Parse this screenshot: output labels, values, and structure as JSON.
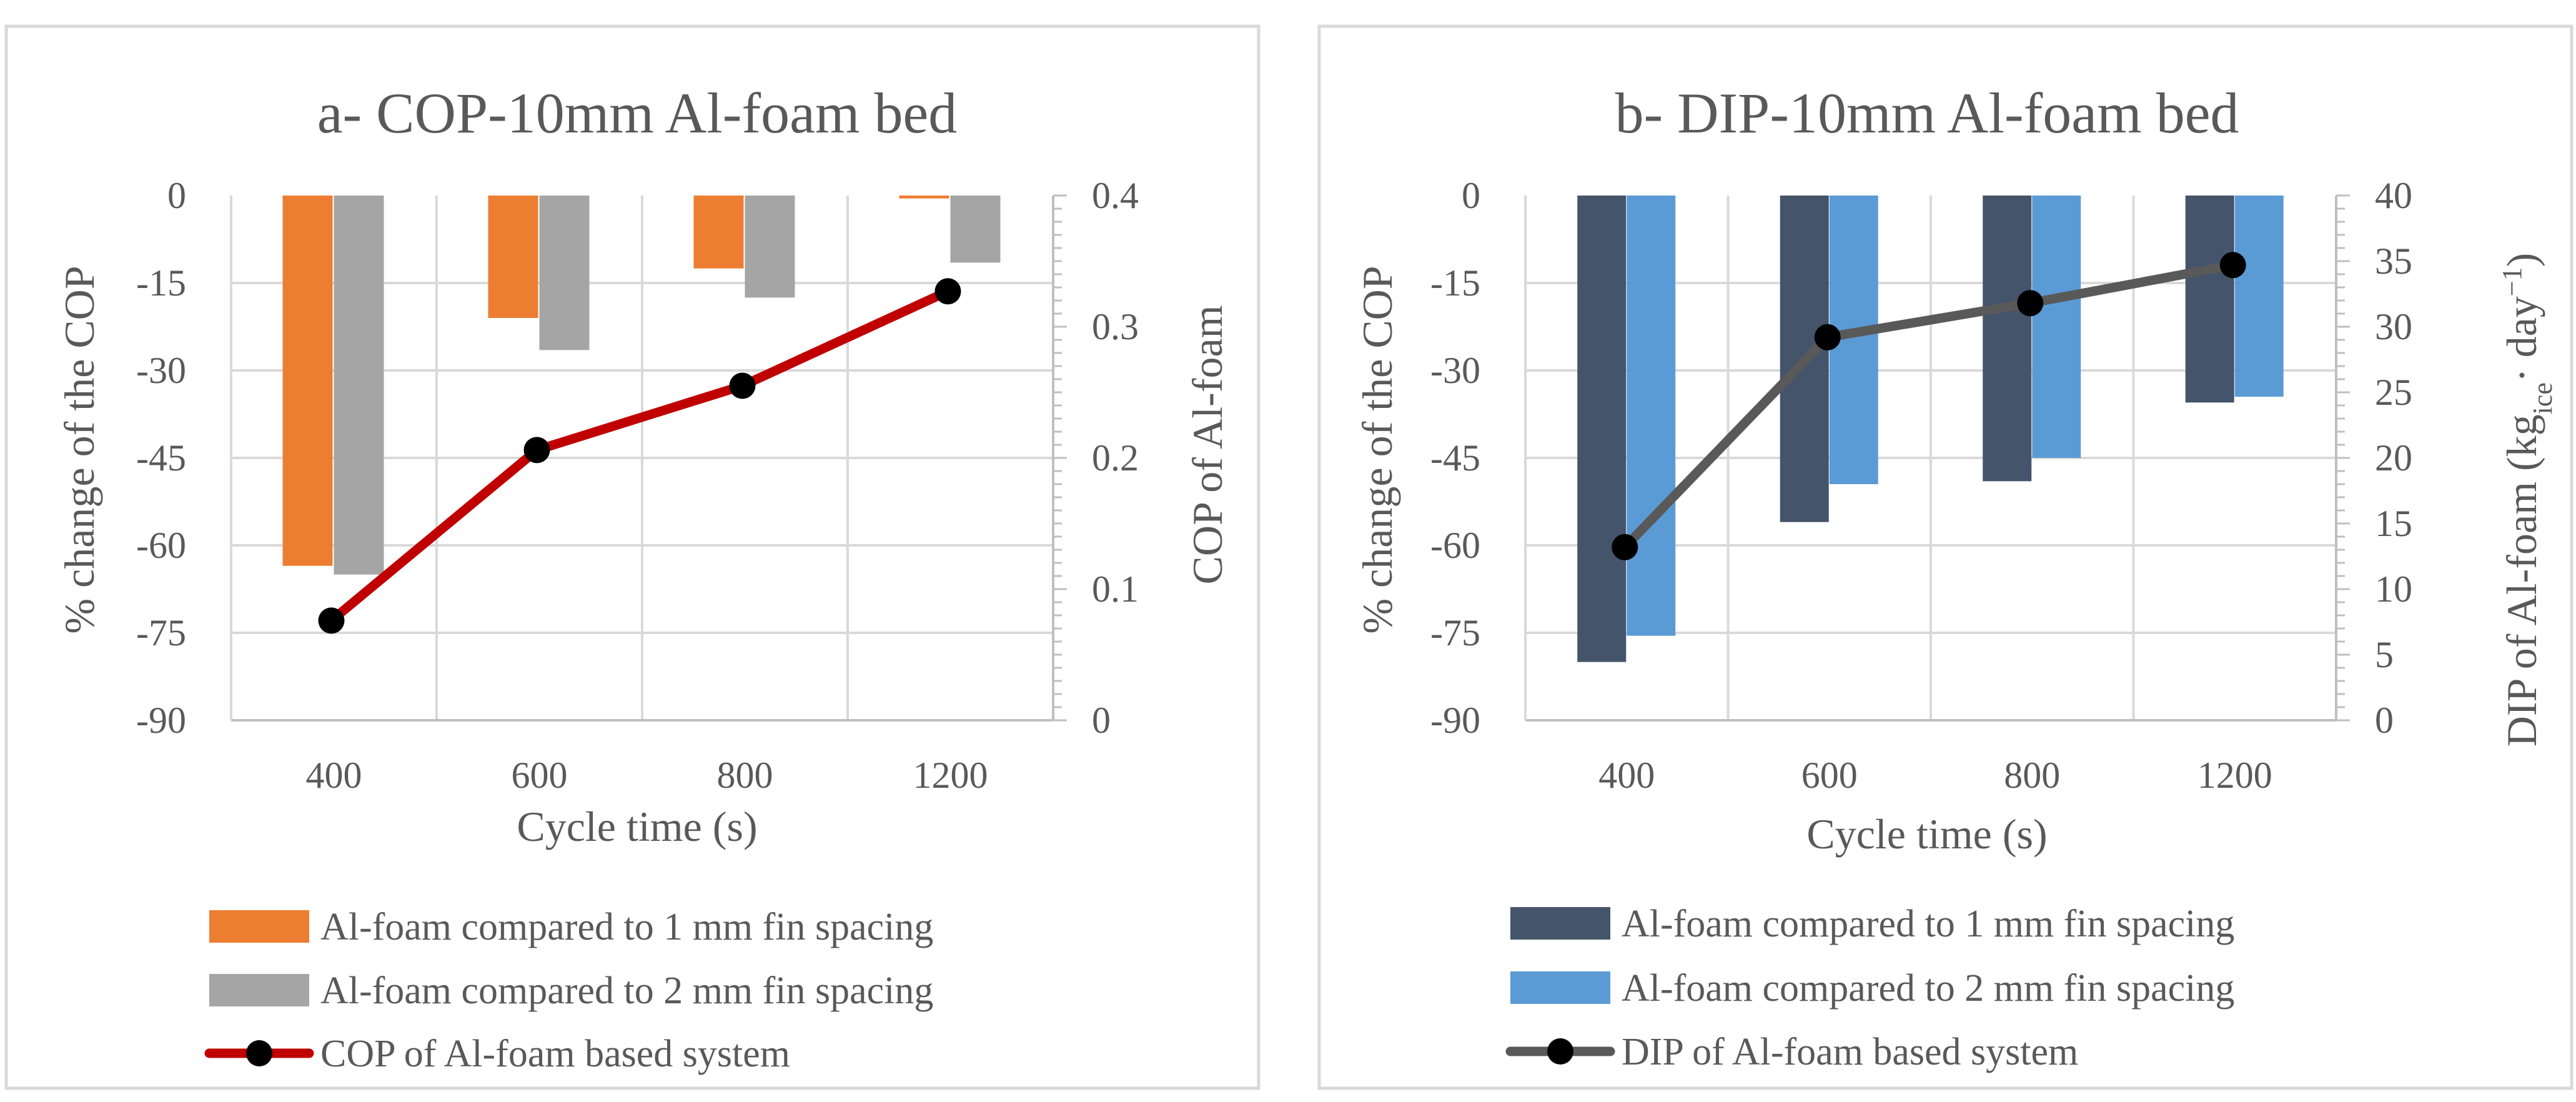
{
  "chart_data": [
    {
      "type": "bar+line",
      "title": "a- COP-10mm Al-foam bed",
      "categories": [
        "400",
        "600",
        "800",
        "1200"
      ],
      "xlabel": "Cycle time (s)",
      "ylabel": "% change of the COP",
      "y2label": "COP of Al-foam",
      "ylim": [
        -90,
        0
      ],
      "y_ticks": [
        "0",
        "-15",
        "-30",
        "-45",
        "-60",
        "-75",
        "-90"
      ],
      "y2lim": [
        0,
        0.4
      ],
      "y2_ticks": [
        "0.4",
        "0.3",
        "0.2",
        "0.1",
        "0"
      ],
      "series": [
        {
          "name": "Al-foam compared to 1 mm fin spacing",
          "kind": "bar",
          "axis": "left",
          "color": "#ED7D31",
          "values": [
            -63.5,
            -21,
            -12.5,
            -0.5
          ]
        },
        {
          "name": "Al-foam compared to 2 mm fin spacing",
          "kind": "bar",
          "axis": "left",
          "color": "#A5A5A5",
          "values": [
            -65,
            -26.5,
            -17.5,
            -11.5
          ]
        },
        {
          "name": "COP of Al-foam based system",
          "kind": "line",
          "axis": "right",
          "color": "#C00000",
          "values": [
            0.076,
            0.206,
            0.255,
            0.327
          ]
        }
      ]
    },
    {
      "type": "bar+line",
      "title": "b- DIP-10mm Al-foam bed",
      "categories": [
        "400",
        "600",
        "800",
        "1200"
      ],
      "xlabel": "Cycle time (s)",
      "ylabel": "% change of the COP",
      "y2label": "DIP of Al-foam (kg_ice· day⁻¹)",
      "y2label_parts": {
        "main": "DIP of Al-foam (kg",
        "sub": "ice",
        "mid": "· day",
        "sup": "−1",
        "end": ")"
      },
      "ylim": [
        -90,
        0
      ],
      "y_ticks": [
        "0",
        "-15",
        "-30",
        "-45",
        "-60",
        "-75",
        "-90"
      ],
      "y2lim": [
        0,
        40
      ],
      "y2_ticks": [
        "40",
        "35",
        "30",
        "25",
        "20",
        "15",
        "10",
        "5",
        "0"
      ],
      "series": [
        {
          "name": "Al-foam compared to 1 mm fin spacing",
          "kind": "bar",
          "axis": "left",
          "color": "#44546A",
          "values": [
            -80,
            -56,
            -49,
            -35.5
          ]
        },
        {
          "name": "Al-foam compared to 2 mm fin spacing",
          "kind": "bar",
          "axis": "left",
          "color": "#5B9BD5",
          "values": [
            -75.5,
            -49.5,
            -45,
            -34.5
          ]
        },
        {
          "name": "DIP of Al-foam based system",
          "kind": "line",
          "axis": "right",
          "color": "#595959",
          "values": [
            13.2,
            29.2,
            31.8,
            34.7
          ]
        }
      ]
    }
  ]
}
